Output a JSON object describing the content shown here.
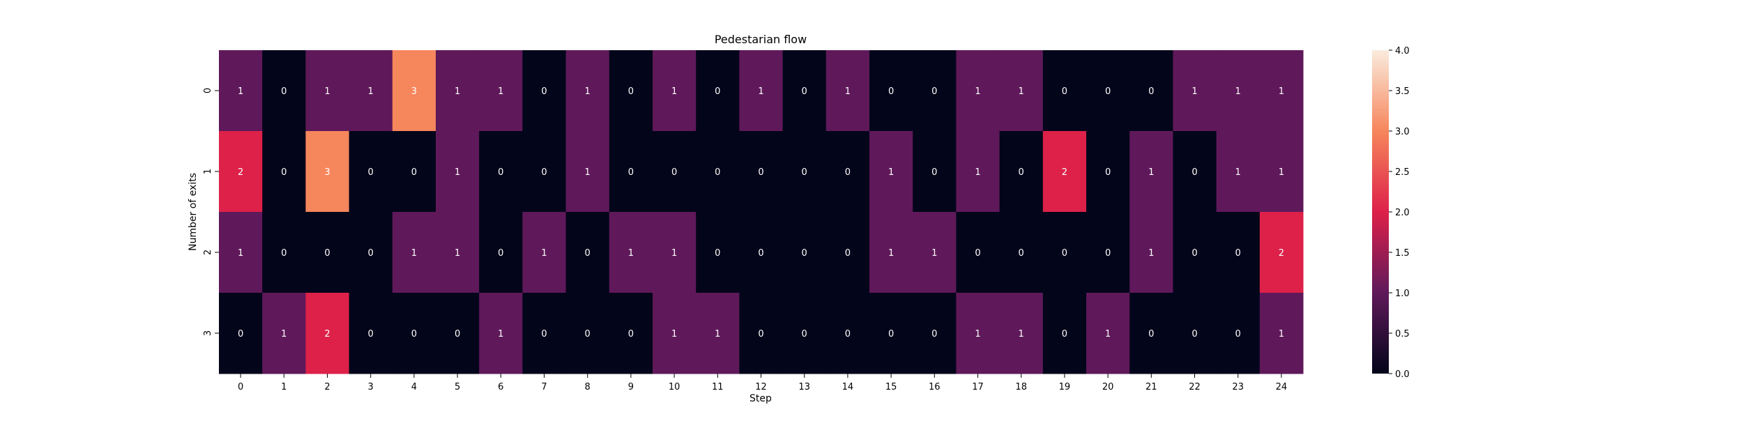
{
  "chart_data": {
    "type": "heatmap",
    "title": "Pedestarian flow",
    "xlabel": "Step",
    "ylabel": "Number of exits",
    "x": [
      "0",
      "1",
      "2",
      "3",
      "4",
      "5",
      "6",
      "7",
      "8",
      "9",
      "10",
      "11",
      "12",
      "13",
      "14",
      "15",
      "16",
      "17",
      "18",
      "19",
      "20",
      "21",
      "22",
      "23",
      "24"
    ],
    "y": [
      "0",
      "1",
      "2",
      "3"
    ],
    "values": [
      [
        1,
        0,
        1,
        1,
        3,
        1,
        1,
        0,
        1,
        0,
        1,
        0,
        1,
        0,
        1,
        0,
        0,
        1,
        1,
        0,
        0,
        0,
        1,
        1,
        1
      ],
      [
        2,
        0,
        3,
        0,
        0,
        1,
        0,
        0,
        1,
        0,
        0,
        0,
        0,
        0,
        0,
        1,
        0,
        1,
        0,
        2,
        0,
        1,
        0,
        1,
        1
      ],
      [
        1,
        0,
        0,
        0,
        1,
        1,
        0,
        1,
        0,
        1,
        1,
        0,
        0,
        0,
        0,
        1,
        1,
        0,
        0,
        0,
        0,
        1,
        0,
        0,
        2
      ],
      [
        0,
        1,
        2,
        0,
        0,
        0,
        1,
        0,
        0,
        0,
        1,
        1,
        0,
        0,
        0,
        0,
        0,
        1,
        1,
        0,
        1,
        0,
        0,
        0,
        1
      ]
    ],
    "vmin": 0,
    "vmax": 4,
    "colorbar_ticks": [
      "0.0",
      "0.5",
      "1.0",
      "1.5",
      "2.0",
      "2.5",
      "3.0",
      "3.5",
      "4.0"
    ],
    "colormap": "rocket",
    "annotations": true
  }
}
